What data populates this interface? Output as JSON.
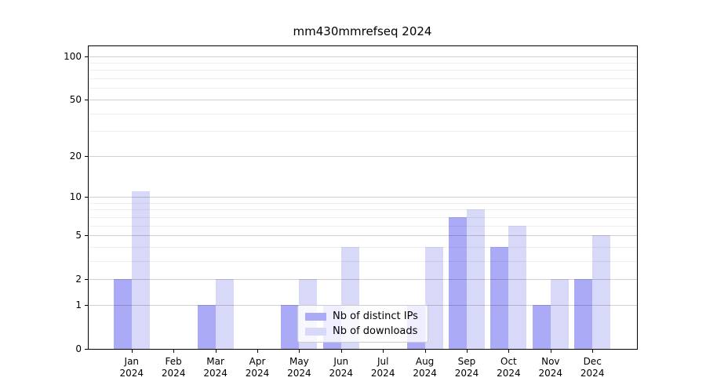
{
  "chart_data": {
    "type": "bar",
    "title": "mm430mmrefseq 2024",
    "categories": [
      "Jan",
      "Feb",
      "Mar",
      "Apr",
      "May",
      "Jun",
      "Jul",
      "Aug",
      "Sep",
      "Oct",
      "Nov",
      "Dec"
    ],
    "year_label": "2024",
    "series": [
      {
        "name": "Nb of distinct IPs",
        "color": "#aaaaf7",
        "values": [
          2,
          0,
          1,
          0,
          1,
          1,
          0,
          1,
          7,
          4,
          1,
          2
        ]
      },
      {
        "name": "Nb of downloads",
        "color": "#d8d8f9",
        "values": [
          11,
          0,
          2,
          0,
          2,
          4,
          0,
          4,
          8,
          6,
          2,
          5
        ]
      }
    ],
    "yscale": "log10(value+1)",
    "ylim": [
      0,
      117
    ],
    "y_major_ticks": [
      0,
      1,
      2,
      5,
      10,
      20,
      50,
      100
    ],
    "y_minor_ticks": [
      3,
      4,
      6,
      7,
      8,
      9,
      30,
      40,
      60,
      70,
      80,
      90
    ],
    "xlabel": "",
    "ylabel": "",
    "grid": "horizontal, drawn above bars",
    "legend_position": "inside bottom-center",
    "colors": {
      "background": "#ffffff",
      "spine": "#000000",
      "major_gridline": "#d2d2d2",
      "minor_gridline": "#ececec",
      "legend_border": "#cccccc"
    }
  }
}
